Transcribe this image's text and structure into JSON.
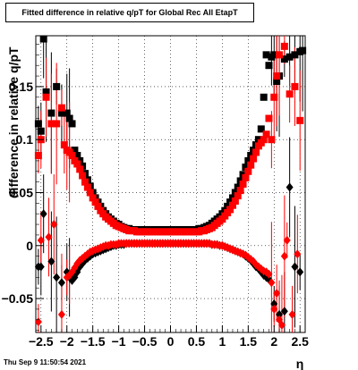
{
  "title": "Fitted difference in relative q/pT for Global Rec All EtapT",
  "timestamp": "Thu Sep  9 11:50:54 2021",
  "chart_data": {
    "type": "scatter",
    "title": "Fitted difference in relative q/pT for Global Rec All EtapT",
    "xlabel": "η",
    "ylabel": "difference in relative q/pT",
    "xlim": [
      -2.6,
      2.6
    ],
    "ylim": [
      -0.082,
      0.198
    ],
    "x_ticks": [
      -2.5,
      -2,
      -1.5,
      -1,
      -0.5,
      0,
      0.5,
      1,
      1.5,
      2,
      2.5
    ],
    "x_tick_labels": [
      "−2.5",
      "−2",
      "−1.5",
      "−1",
      "−0.5",
      "0",
      "0.5",
      "1",
      "1.5",
      "2",
      "2.5"
    ],
    "y_ticks": [
      -0.05,
      0,
      0.05,
      0.1,
      0.15
    ],
    "y_tick_labels": [
      "−0.05",
      "0",
      "0.05",
      "0.1",
      "0.15"
    ],
    "grid": true,
    "series": [
      {
        "name": "",
        "color": "#000000",
        "marker": "square",
        "x": [
          -2.55,
          -2.5,
          -2.45,
          -2.4,
          -2.3,
          -2.2,
          -2.1,
          -2.0,
          -1.95,
          -1.9,
          -1.85,
          -1.8,
          -1.75,
          -1.7,
          -1.65,
          -1.6,
          -1.55,
          -1.5,
          -1.45,
          -1.4,
          -1.35,
          -1.3,
          -1.25,
          -1.2,
          -1.15,
          -1.1,
          -1.05,
          -1.0,
          -0.95,
          -0.9,
          -0.85,
          -0.8,
          -0.75,
          -0.7,
          -0.65,
          -0.6,
          -0.55,
          -0.5,
          -0.45,
          -0.4,
          -0.35,
          -0.3,
          -0.25,
          -0.2,
          -0.15,
          -0.1,
          -0.05,
          0.0,
          0.05,
          0.1,
          0.15,
          0.2,
          0.25,
          0.3,
          0.35,
          0.4,
          0.45,
          0.5,
          0.55,
          0.6,
          0.65,
          0.7,
          0.75,
          0.8,
          0.85,
          0.9,
          0.95,
          1.0,
          1.05,
          1.1,
          1.15,
          1.2,
          1.25,
          1.3,
          1.35,
          1.4,
          1.45,
          1.5,
          1.55,
          1.6,
          1.65,
          1.7,
          1.75,
          1.8,
          1.85,
          1.9,
          1.95,
          2.0,
          2.05,
          2.1,
          2.2,
          2.3,
          2.4,
          2.5,
          2.55
        ],
        "y": [
          0.115,
          0.108,
          0.195,
          0.145,
          0.125,
          0.15,
          0.125,
          0.125,
          0.12,
          0.115,
          0.09,
          0.085,
          0.08,
          0.075,
          0.068,
          0.062,
          0.056,
          0.05,
          0.045,
          0.041,
          0.037,
          0.033,
          0.03,
          0.027,
          0.025,
          0.023,
          0.021,
          0.02,
          0.018,
          0.017,
          0.016,
          0.016,
          0.015,
          0.015,
          0.015,
          0.015,
          0.015,
          0.015,
          0.015,
          0.015,
          0.015,
          0.015,
          0.015,
          0.015,
          0.015,
          0.015,
          0.015,
          0.015,
          0.015,
          0.015,
          0.015,
          0.015,
          0.015,
          0.015,
          0.015,
          0.015,
          0.015,
          0.015,
          0.016,
          0.016,
          0.017,
          0.018,
          0.019,
          0.021,
          0.023,
          0.025,
          0.027,
          0.03,
          0.033,
          0.037,
          0.041,
          0.045,
          0.05,
          0.055,
          0.061,
          0.067,
          0.074,
          0.08,
          0.085,
          0.09,
          0.095,
          0.1,
          0.11,
          0.14,
          0.18,
          0.17,
          0.178,
          0.18,
          0.155,
          0.16,
          0.176,
          0.178,
          0.18,
          0.183,
          0.184
        ]
      },
      {
        "name": "",
        "color": "#000000",
        "marker": "diamond",
        "x": [
          -2.55,
          -2.5,
          -2.45,
          -2.3,
          -2.2,
          -2.1,
          -2.0,
          -1.95,
          -1.9,
          -1.85,
          -1.8,
          -1.75,
          -1.7,
          -1.65,
          -1.6,
          -1.55,
          -1.5,
          -1.45,
          -1.4,
          -1.35,
          -1.3,
          -1.25,
          -1.2,
          -1.15,
          -1.1,
          -1.05,
          -1.0,
          -0.95,
          -0.9,
          -0.85,
          -0.8,
          -0.75,
          -0.7,
          -0.65,
          -0.6,
          -0.55,
          -0.5,
          -0.45,
          -0.4,
          -0.35,
          -0.3,
          -0.25,
          -0.2,
          -0.15,
          -0.1,
          -0.05,
          0.0,
          0.05,
          0.1,
          0.15,
          0.2,
          0.25,
          0.3,
          0.35,
          0.4,
          0.45,
          0.5,
          0.55,
          0.6,
          0.65,
          0.7,
          0.75,
          0.8,
          0.85,
          0.9,
          0.95,
          1.0,
          1.05,
          1.1,
          1.15,
          1.2,
          1.25,
          1.3,
          1.35,
          1.4,
          1.45,
          1.5,
          1.55,
          1.6,
          1.65,
          1.7,
          1.75,
          1.8,
          1.85,
          1.9,
          2.0,
          2.1,
          2.2,
          2.3,
          2.4,
          2.5
        ],
        "y": [
          -0.02,
          -0.02,
          0.03,
          -0.015,
          -0.03,
          -0.035,
          -0.025,
          -0.03,
          -0.033,
          -0.03,
          -0.025,
          -0.02,
          -0.017,
          -0.014,
          -0.012,
          -0.01,
          -0.008,
          -0.007,
          -0.006,
          -0.005,
          -0.004,
          -0.003,
          -0.002,
          -0.001,
          0.0,
          0.0,
          0.001,
          0.001,
          0.001,
          0.002,
          0.002,
          0.002,
          0.002,
          0.002,
          0.002,
          0.002,
          0.002,
          0.002,
          0.002,
          0.002,
          0.002,
          0.002,
          0.002,
          0.002,
          0.002,
          0.002,
          0.002,
          0.002,
          0.002,
          0.002,
          0.002,
          0.002,
          0.002,
          0.002,
          0.002,
          0.002,
          0.002,
          0.002,
          0.002,
          0.002,
          0.002,
          0.002,
          0.001,
          0.001,
          0.001,
          0.0,
          0.0,
          -0.001,
          -0.002,
          -0.003,
          -0.004,
          -0.005,
          -0.006,
          -0.007,
          -0.008,
          -0.01,
          -0.012,
          -0.014,
          -0.017,
          -0.02,
          -0.022,
          -0.025,
          -0.028,
          -0.03,
          -0.032,
          -0.055,
          -0.065,
          -0.062,
          0.055,
          -0.02,
          -0.025
        ]
      },
      {
        "name": "",
        "color": "#ff0000",
        "marker": "square",
        "x": [
          -2.55,
          -2.5,
          -2.4,
          -2.3,
          -2.2,
          -2.1,
          -2.05,
          -2.0,
          -1.95,
          -1.9,
          -1.85,
          -1.8,
          -1.75,
          -1.7,
          -1.65,
          -1.6,
          -1.55,
          -1.5,
          -1.45,
          -1.4,
          -1.35,
          -1.3,
          -1.25,
          -1.2,
          -1.15,
          -1.1,
          -1.05,
          -1.0,
          -0.95,
          -0.9,
          -0.85,
          -0.8,
          -0.75,
          -0.7,
          -0.65,
          -0.6,
          -0.55,
          -0.5,
          -0.45,
          -0.4,
          -0.35,
          -0.3,
          -0.25,
          -0.2,
          -0.15,
          -0.1,
          -0.05,
          0.0,
          0.05,
          0.1,
          0.15,
          0.2,
          0.25,
          0.3,
          0.35,
          0.4,
          0.45,
          0.5,
          0.55,
          0.6,
          0.65,
          0.7,
          0.75,
          0.8,
          0.85,
          0.9,
          0.95,
          1.0,
          1.05,
          1.1,
          1.15,
          1.2,
          1.25,
          1.3,
          1.35,
          1.4,
          1.45,
          1.5,
          1.55,
          1.6,
          1.65,
          1.7,
          1.75,
          1.8,
          1.85,
          1.9,
          1.95,
          2.0,
          2.05,
          2.1,
          2.2,
          2.3,
          2.4,
          2.5
        ],
        "y": [
          0.085,
          0.1,
          0.14,
          0.115,
          0.115,
          0.13,
          0.095,
          0.09,
          0.088,
          0.085,
          0.08,
          0.077,
          0.072,
          0.066,
          0.06,
          0.055,
          0.05,
          0.045,
          0.041,
          0.037,
          0.033,
          0.03,
          0.027,
          0.025,
          0.023,
          0.021,
          0.019,
          0.018,
          0.017,
          0.016,
          0.015,
          0.014,
          0.014,
          0.014,
          0.013,
          0.013,
          0.013,
          0.013,
          0.013,
          0.013,
          0.013,
          0.013,
          0.013,
          0.013,
          0.013,
          0.013,
          0.013,
          0.013,
          0.013,
          0.013,
          0.013,
          0.013,
          0.013,
          0.013,
          0.013,
          0.013,
          0.013,
          0.013,
          0.013,
          0.014,
          0.014,
          0.015,
          0.016,
          0.017,
          0.019,
          0.021,
          0.023,
          0.025,
          0.028,
          0.031,
          0.034,
          0.038,
          0.042,
          0.047,
          0.052,
          0.058,
          0.064,
          0.07,
          0.076,
          0.082,
          0.088,
          0.094,
          0.097,
          0.1,
          0.105,
          0.12,
          0.1,
          0.14,
          0.16,
          0.18,
          0.188,
          0.143,
          0.15,
          0.118
        ]
      },
      {
        "name": "",
        "color": "#ff0000",
        "marker": "diamond",
        "x": [
          -2.55,
          -2.5,
          -2.35,
          -2.25,
          -2.1,
          -2.0,
          -1.95,
          -1.9,
          -1.85,
          -1.8,
          -1.75,
          -1.7,
          -1.65,
          -1.6,
          -1.55,
          -1.5,
          -1.45,
          -1.4,
          -1.35,
          -1.3,
          -1.25,
          -1.2,
          -1.15,
          -1.1,
          -1.05,
          -1.0,
          -0.95,
          -0.9,
          -0.85,
          -0.8,
          -0.75,
          -0.7,
          -0.65,
          -0.6,
          -0.55,
          -0.5,
          -0.45,
          -0.4,
          -0.35,
          -0.3,
          -0.25,
          -0.2,
          -0.15,
          -0.1,
          -0.05,
          0.0,
          0.05,
          0.1,
          0.15,
          0.2,
          0.25,
          0.3,
          0.35,
          0.4,
          0.45,
          0.5,
          0.55,
          0.6,
          0.65,
          0.7,
          0.75,
          0.8,
          0.85,
          0.9,
          0.95,
          1.0,
          1.05,
          1.1,
          1.15,
          1.2,
          1.25,
          1.3,
          1.35,
          1.4,
          1.45,
          1.5,
          1.55,
          1.6,
          1.65,
          1.7,
          1.75,
          1.8,
          1.85,
          1.9,
          1.95,
          2.0,
          2.05,
          2.1,
          2.15,
          2.2,
          2.25,
          2.35,
          2.45
        ],
        "y": [
          -0.072,
          0.005,
          0.008,
          0.02,
          -0.065,
          -0.03,
          -0.028,
          -0.025,
          -0.021,
          -0.017,
          -0.014,
          -0.012,
          -0.01,
          -0.008,
          -0.006,
          -0.005,
          -0.004,
          -0.003,
          -0.002,
          -0.001,
          0.0,
          0.0,
          0.001,
          0.001,
          0.001,
          0.002,
          0.002,
          0.002,
          0.002,
          0.002,
          0.002,
          0.002,
          0.002,
          0.002,
          0.002,
          0.002,
          0.002,
          0.002,
          0.002,
          0.002,
          0.002,
          0.002,
          0.002,
          0.002,
          0.002,
          0.002,
          0.002,
          0.002,
          0.002,
          0.002,
          0.002,
          0.002,
          0.002,
          0.002,
          0.002,
          0.002,
          0.002,
          0.002,
          0.002,
          0.002,
          0.002,
          0.001,
          0.001,
          0.001,
          0.0,
          0.0,
          -0.001,
          -0.002,
          -0.003,
          -0.004,
          -0.005,
          -0.006,
          -0.007,
          -0.008,
          -0.009,
          -0.011,
          -0.013,
          -0.015,
          -0.018,
          -0.02,
          -0.022,
          -0.024,
          -0.025,
          -0.027,
          -0.035,
          -0.06,
          -0.045,
          -0.07,
          -0.075,
          -0.01,
          0.005,
          -0.065,
          -0.008
        ]
      }
    ]
  }
}
